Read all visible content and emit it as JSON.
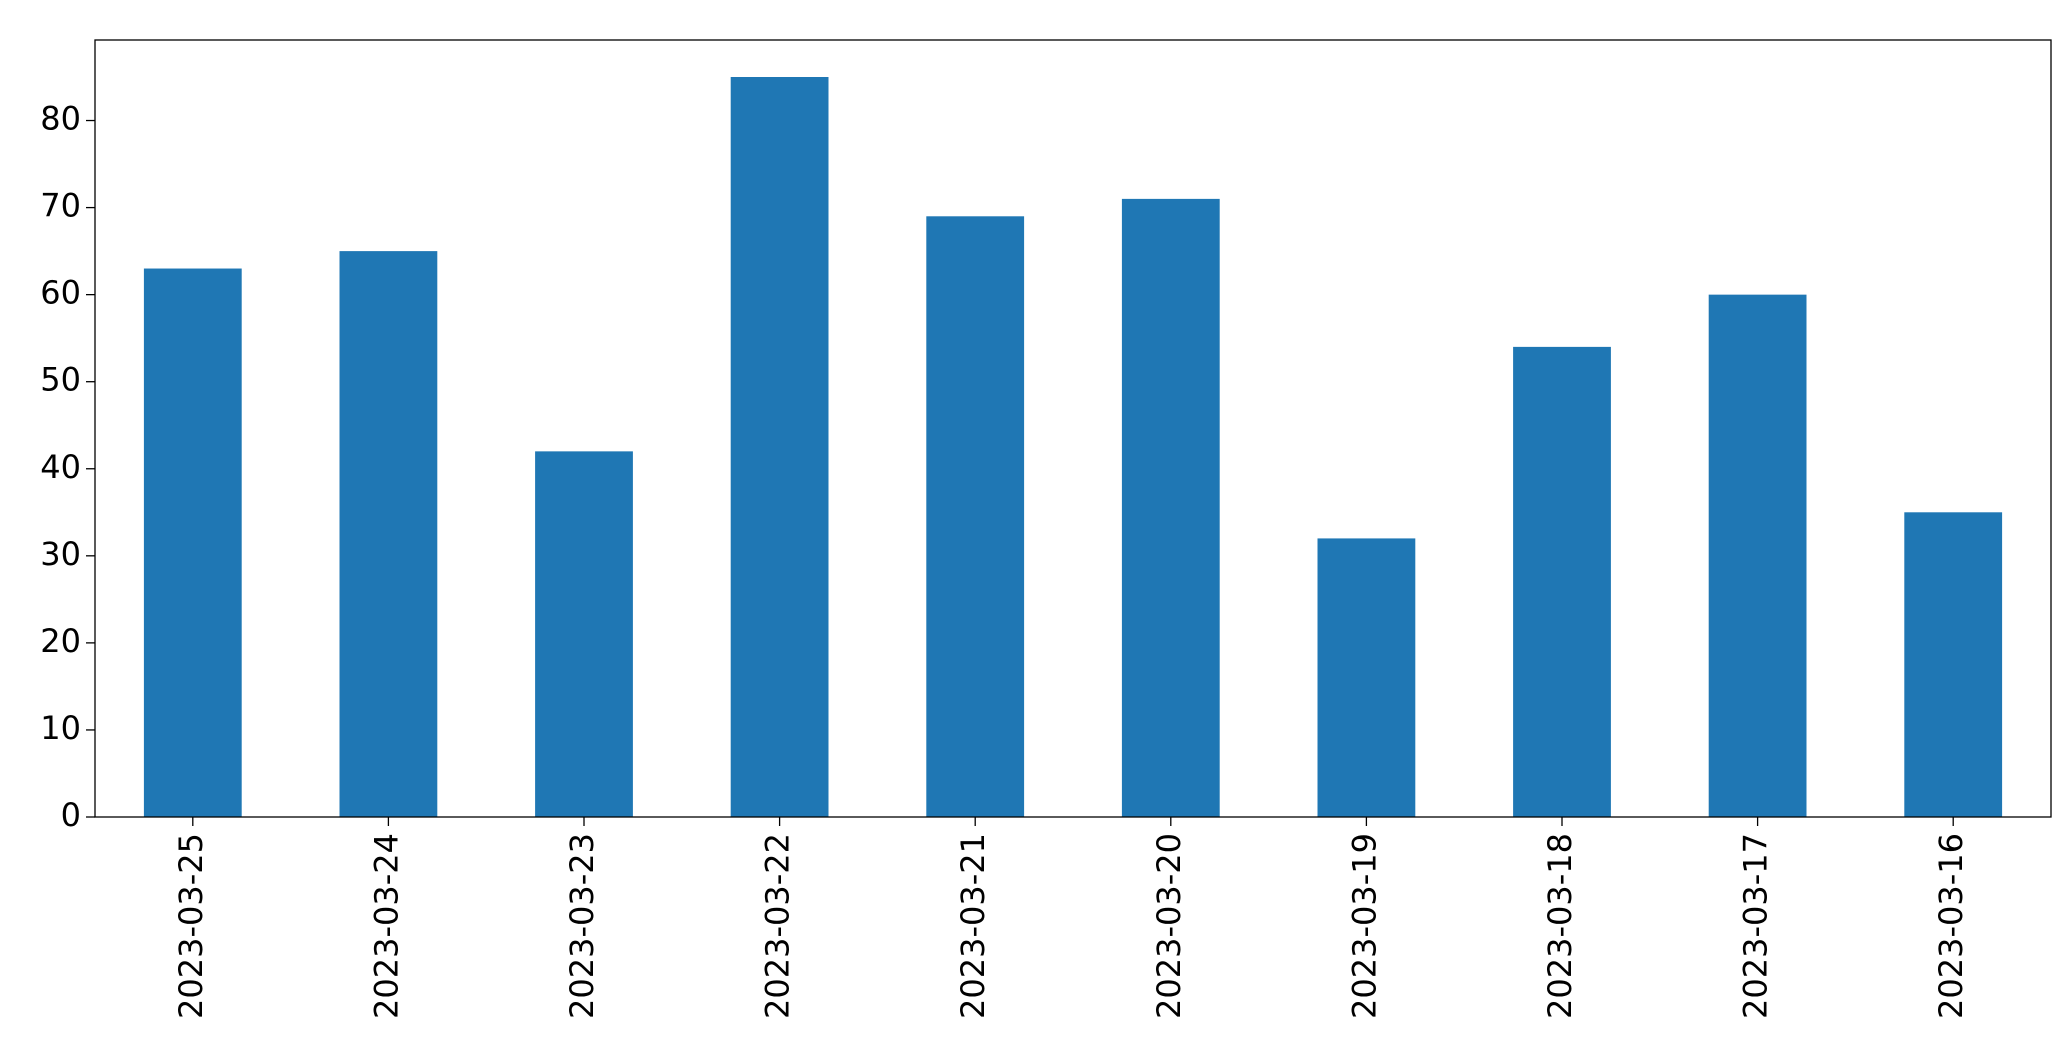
{
  "chart_data": {
    "type": "bar",
    "categories": [
      "2023-03-25",
      "2023-03-24",
      "2023-03-23",
      "2023-03-22",
      "2023-03-21",
      "2023-03-20",
      "2023-03-19",
      "2023-03-18",
      "2023-03-17",
      "2023-03-16"
    ],
    "values": [
      63,
      65,
      42,
      85,
      69,
      71,
      32,
      54,
      60,
      35
    ],
    "color": "#1f77b4",
    "ylim": [
      0,
      89.25
    ],
    "yticks": [
      0,
      10,
      20,
      30,
      40,
      50,
      60,
      70,
      80
    ],
    "grid": false
  }
}
